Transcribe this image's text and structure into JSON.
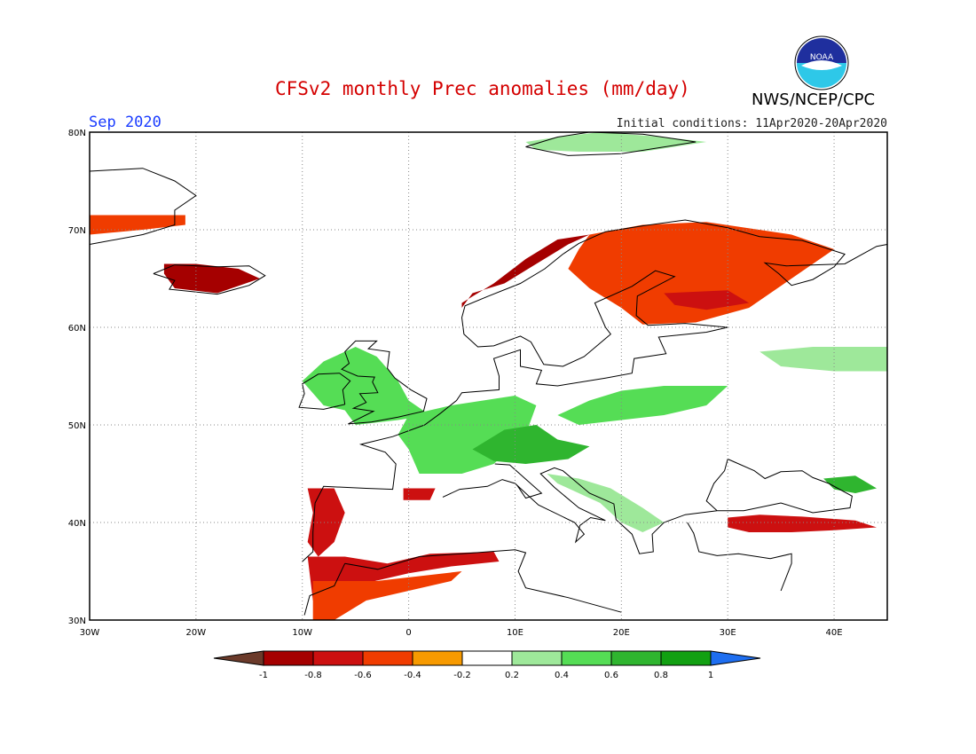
{
  "header": {
    "title": "CFSv2 monthly Prec anomalies (mm/day)",
    "agency": "NWS/NCEP/CPC",
    "logo_text": "NOAA",
    "target_month": "Sep 2020",
    "initial_conditions": "Initial conditions: 11Apr2020-20Apr2020"
  },
  "map": {
    "lon_range": [
      -30,
      45
    ],
    "lat_range": [
      30,
      80
    ],
    "lon_labels": [
      "30W",
      "20W",
      "10W",
      "0",
      "10E",
      "20E",
      "30E",
      "40E"
    ],
    "lat_labels": [
      "30N",
      "40N",
      "50N",
      "60N",
      "70N",
      "80N"
    ],
    "gridlines": "dotted"
  },
  "colorbar": {
    "tick_labels": [
      "-1",
      "-0.8",
      "-0.6",
      "-0.4",
      "-0.2",
      "0.2",
      "0.4",
      "0.6",
      "0.8",
      "1"
    ],
    "colors": [
      "#6b3a2a",
      "#a50000",
      "#cc1010",
      "#f03c00",
      "#f79a00",
      "#ffffff",
      "#9ee89a",
      "#55dd55",
      "#2fb52f",
      "#12a012",
      "#1e6ef0"
    ]
  },
  "anomaly_regions": [
    {
      "name": "Scandinavian west coast",
      "value": -0.8
    },
    {
      "name": "Finland and NW Russia",
      "value": -0.4
    },
    {
      "name": "Central Finland",
      "value": -0.6
    },
    {
      "name": "Iceland",
      "value": -0.8
    },
    {
      "name": "East Greenland coast",
      "value": -0.4
    },
    {
      "name": "Western Iberia",
      "value": -0.6
    },
    {
      "name": "Morocco and Algeria",
      "value": -0.6
    },
    {
      "name": "Northern Africa",
      "value": -0.4
    },
    {
      "name": "Northern Spain",
      "value": -0.6
    },
    {
      "name": "Southern Turkey",
      "value": -0.6
    },
    {
      "name": "Britain and Ireland",
      "value": 0.4
    },
    {
      "name": "France and Benelux",
      "value": 0.4
    },
    {
      "name": "Germany and Alps",
      "value": 0.6
    },
    {
      "name": "Poland and Belarus",
      "value": 0.4
    },
    {
      "name": "Balkans",
      "value": 0.2
    },
    {
      "name": "Western Russia",
      "value": 0.2
    },
    {
      "name": "Caucasus",
      "value": 0.6
    },
    {
      "name": "Svalbard",
      "value": 0.2
    }
  ]
}
